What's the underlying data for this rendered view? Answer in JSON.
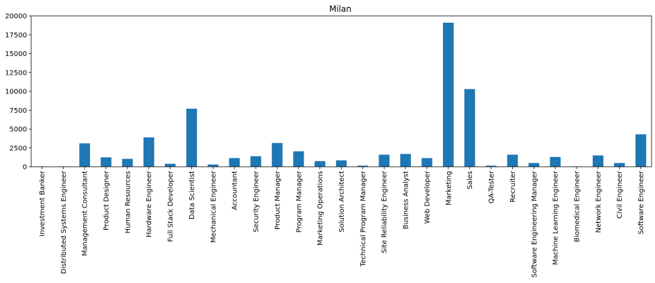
{
  "chart_data": {
    "type": "bar",
    "title": "Milan",
    "xlabel": "",
    "ylabel": "",
    "ylim": [
      0,
      20000
    ],
    "yticks": [
      0,
      2500,
      5000,
      7500,
      10000,
      12500,
      15000,
      17500,
      20000
    ],
    "ytick_labels": [
      "0",
      "2500",
      "5000",
      "7500",
      "10000",
      "12500",
      "15000",
      "17500",
      "20000"
    ],
    "grid": false,
    "legend": "none",
    "bar_color": "#1f77b4",
    "categories": [
      "Investment Banker",
      "Distributed Systems Engineer",
      "Management Consultant",
      "Product Designer",
      "Human Resources",
      "Hardware Engineer",
      "Full Stack Developer",
      "Data Scientist",
      "Mechanical Engineer",
      "Accountant",
      "Security Engineer",
      "Product Manager",
      "Program Manager",
      "Marketing Operations",
      "Solution Architect",
      "Technical Program Manager",
      "Site Reliability Engineer",
      "Business Analyst",
      "Web Developer",
      "Marketing",
      "Sales",
      "QA-Tester",
      "Recruiter",
      "Software Engineering Manager",
      "Machine Learning Engineer",
      "Biomedical Engineer",
      "Network Engineer",
      "Civil Engineer",
      "Software Engineer"
    ],
    "values": [
      50,
      50,
      3100,
      1250,
      1050,
      3900,
      400,
      7700,
      300,
      1150,
      1400,
      3150,
      2050,
      750,
      850,
      150,
      1600,
      1700,
      1150,
      19100,
      10300,
      150,
      1600,
      500,
      1300,
      50,
      1500,
      500,
      4300
    ]
  }
}
